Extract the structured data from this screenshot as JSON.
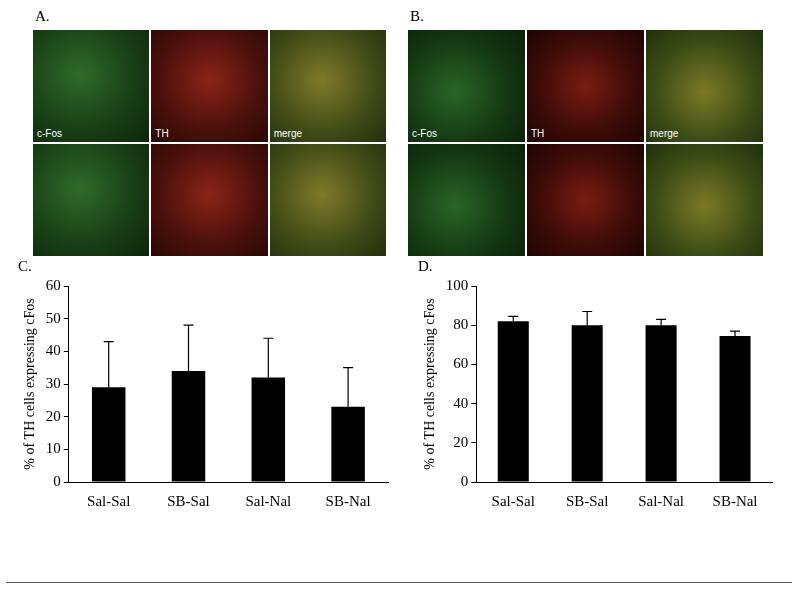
{
  "images": [
    {
      "label": "A.",
      "panels": [
        "c-Fos",
        "TH",
        "merge"
      ]
    },
    {
      "label": "B.",
      "panels": [
        "c-Fos",
        "TH",
        "merge"
      ]
    }
  ],
  "chart_data": [
    {
      "type": "bar",
      "title": "C.",
      "ylabel": "% of TH cells expressing cFos",
      "categories": [
        "Sal-Sal",
        "SB-Sal",
        "Sal-Nal",
        "SB-Nal"
      ],
      "values": [
        29,
        34,
        32,
        23
      ],
      "errors": [
        14,
        14,
        12,
        12
      ],
      "color": "#000000",
      "ylim": [
        0,
        60
      ],
      "yticks": [
        0,
        10,
        20,
        30,
        40,
        50,
        60
      ],
      "grid": false
    },
    {
      "type": "bar",
      "title": "D.",
      "ylabel": "% of TH cells expressing cFos",
      "categories": [
        "Sal-Sal",
        "SB-Sal",
        "Sal-Nal",
        "SB-Nal"
      ],
      "values": [
        82,
        80,
        80,
        74.5
      ],
      "errors": [
        2.5,
        7,
        3,
        2.5
      ],
      "color": "#000000",
      "ylim": [
        0,
        100
      ],
      "yticks": [
        0,
        20,
        40,
        60,
        80,
        100
      ],
      "grid": false
    }
  ]
}
